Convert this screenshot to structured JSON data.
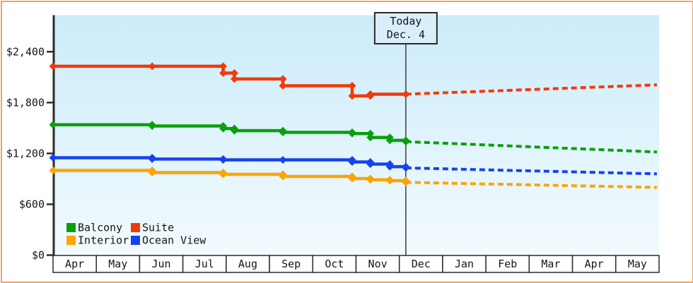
{
  "frame": {
    "border_color": "#eda55f",
    "background": "#ffffff"
  },
  "chart_data": {
    "type": "line",
    "title": "",
    "y_axis": {
      "tick_labels": [
        "$2,400",
        "$1,800",
        "$1,200",
        "$600",
        "$0"
      ],
      "tick_values": [
        2400,
        1800,
        1200,
        600,
        0
      ],
      "ylim": [
        0,
        2830
      ],
      "grid": false
    },
    "x_axis": {
      "months": [
        "Apr",
        "May",
        "Jun",
        "Jul",
        "Aug",
        "Sep",
        "Oct",
        "Nov",
        "Dec",
        "Jan",
        "Feb",
        "Mar",
        "Apr",
        "May"
      ]
    },
    "today": {
      "line1": "Today",
      "line2": "Dec. 4",
      "month_position": 8.15
    },
    "plot": {
      "bg_top": "#cbecfa",
      "bg_bottom": "#f3fafe"
    },
    "legend_position": "bottom-left",
    "legend": [
      {
        "label": "Balcony",
        "color": "#0aa00a"
      },
      {
        "label": "Suite",
        "color": "#f13a0a"
      },
      {
        "label": "Interior",
        "color": "#fca404"
      },
      {
        "label": "Ocean View",
        "color": "#1742f0"
      }
    ],
    "series": [
      {
        "name": "Suite",
        "color": "#f13a0a",
        "points": [
          {
            "m": 0.0,
            "v": 2229
          },
          {
            "m": 2.29,
            "v": 2229
          },
          {
            "m": 3.93,
            "v": 2149
          },
          {
            "m": 4.19,
            "v": 2079
          },
          {
            "m": 5.31,
            "v": 1999
          },
          {
            "m": 6.91,
            "v": 1879
          },
          {
            "m": 7.33,
            "v": 1899
          },
          {
            "m": 8.15,
            "v": 1899
          }
        ],
        "projection": {
          "m": 13.95,
          "v": 2009,
          "style": "dotted"
        }
      },
      {
        "name": "Balcony",
        "color": "#0aa00a",
        "points": [
          {
            "m": 0.0,
            "v": 1539
          },
          {
            "m": 2.29,
            "v": 1524
          },
          {
            "m": 3.93,
            "v": 1494
          },
          {
            "m": 4.19,
            "v": 1469
          },
          {
            "m": 5.31,
            "v": 1449
          },
          {
            "m": 6.91,
            "v": 1434
          },
          {
            "m": 7.33,
            "v": 1389
          },
          {
            "m": 7.78,
            "v": 1354
          },
          {
            "m": 8.15,
            "v": 1339
          }
        ],
        "projection": {
          "m": 13.95,
          "v": 1217,
          "style": "dotted"
        }
      },
      {
        "name": "Ocean View",
        "color": "#1742f0",
        "points": [
          {
            "m": 0.0,
            "v": 1149
          },
          {
            "m": 2.29,
            "v": 1134
          },
          {
            "m": 3.93,
            "v": 1124
          },
          {
            "m": 5.31,
            "v": 1124
          },
          {
            "m": 6.91,
            "v": 1099
          },
          {
            "m": 7.33,
            "v": 1074
          },
          {
            "m": 7.78,
            "v": 1044
          },
          {
            "m": 8.15,
            "v": 1029
          }
        ],
        "projection": {
          "m": 13.95,
          "v": 959,
          "style": "dotted"
        }
      },
      {
        "name": "Interior",
        "color": "#fca404",
        "points": [
          {
            "m": 0.0,
            "v": 999
          },
          {
            "m": 2.29,
            "v": 974
          },
          {
            "m": 3.93,
            "v": 954
          },
          {
            "m": 5.31,
            "v": 929
          },
          {
            "m": 6.91,
            "v": 904
          },
          {
            "m": 7.33,
            "v": 889
          },
          {
            "m": 7.78,
            "v": 879
          },
          {
            "m": 8.15,
            "v": 859
          }
        ],
        "projection": {
          "m": 13.95,
          "v": 799,
          "style": "dotted"
        }
      }
    ]
  }
}
